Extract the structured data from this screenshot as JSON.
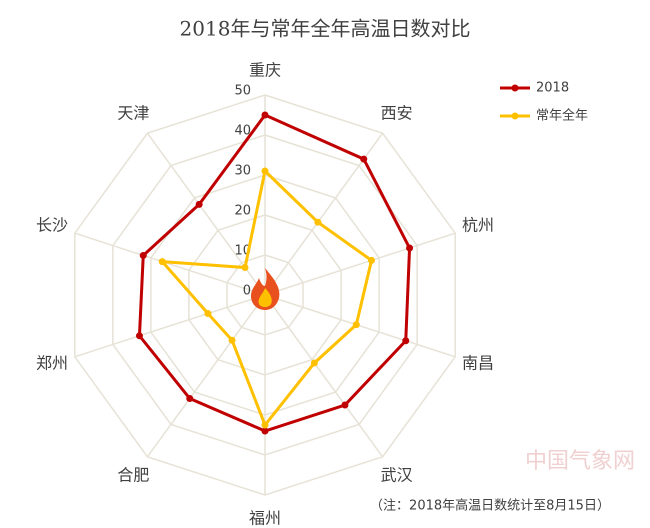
{
  "chart_data": {
    "type": "radar",
    "title": "2018年与常年全年高温日数对比",
    "categories": [
      "重庆",
      "西安",
      "杭州",
      "南昌",
      "武汉",
      "福州",
      "合肥",
      "郑州",
      "长沙",
      "天津"
    ],
    "series": [
      {
        "name": "2018",
        "color": "#c00000",
        "values": [
          45,
          42,
          38,
          37,
          34,
          34,
          32,
          33,
          32,
          28
        ]
      },
      {
        "name": "常年全年",
        "color": "#ffc000",
        "values": [
          31,
          22.5,
          28,
          24,
          21,
          32.5,
          14,
          15,
          27,
          8.5
        ]
      }
    ],
    "rlim": [
      0,
      50
    ],
    "rticks": [
      0,
      10,
      20,
      30,
      40,
      50
    ],
    "grid": true,
    "legend": "top-right",
    "note": "（注：2018年高温日数统计至8月15日）",
    "watermark": "中国气象网"
  }
}
